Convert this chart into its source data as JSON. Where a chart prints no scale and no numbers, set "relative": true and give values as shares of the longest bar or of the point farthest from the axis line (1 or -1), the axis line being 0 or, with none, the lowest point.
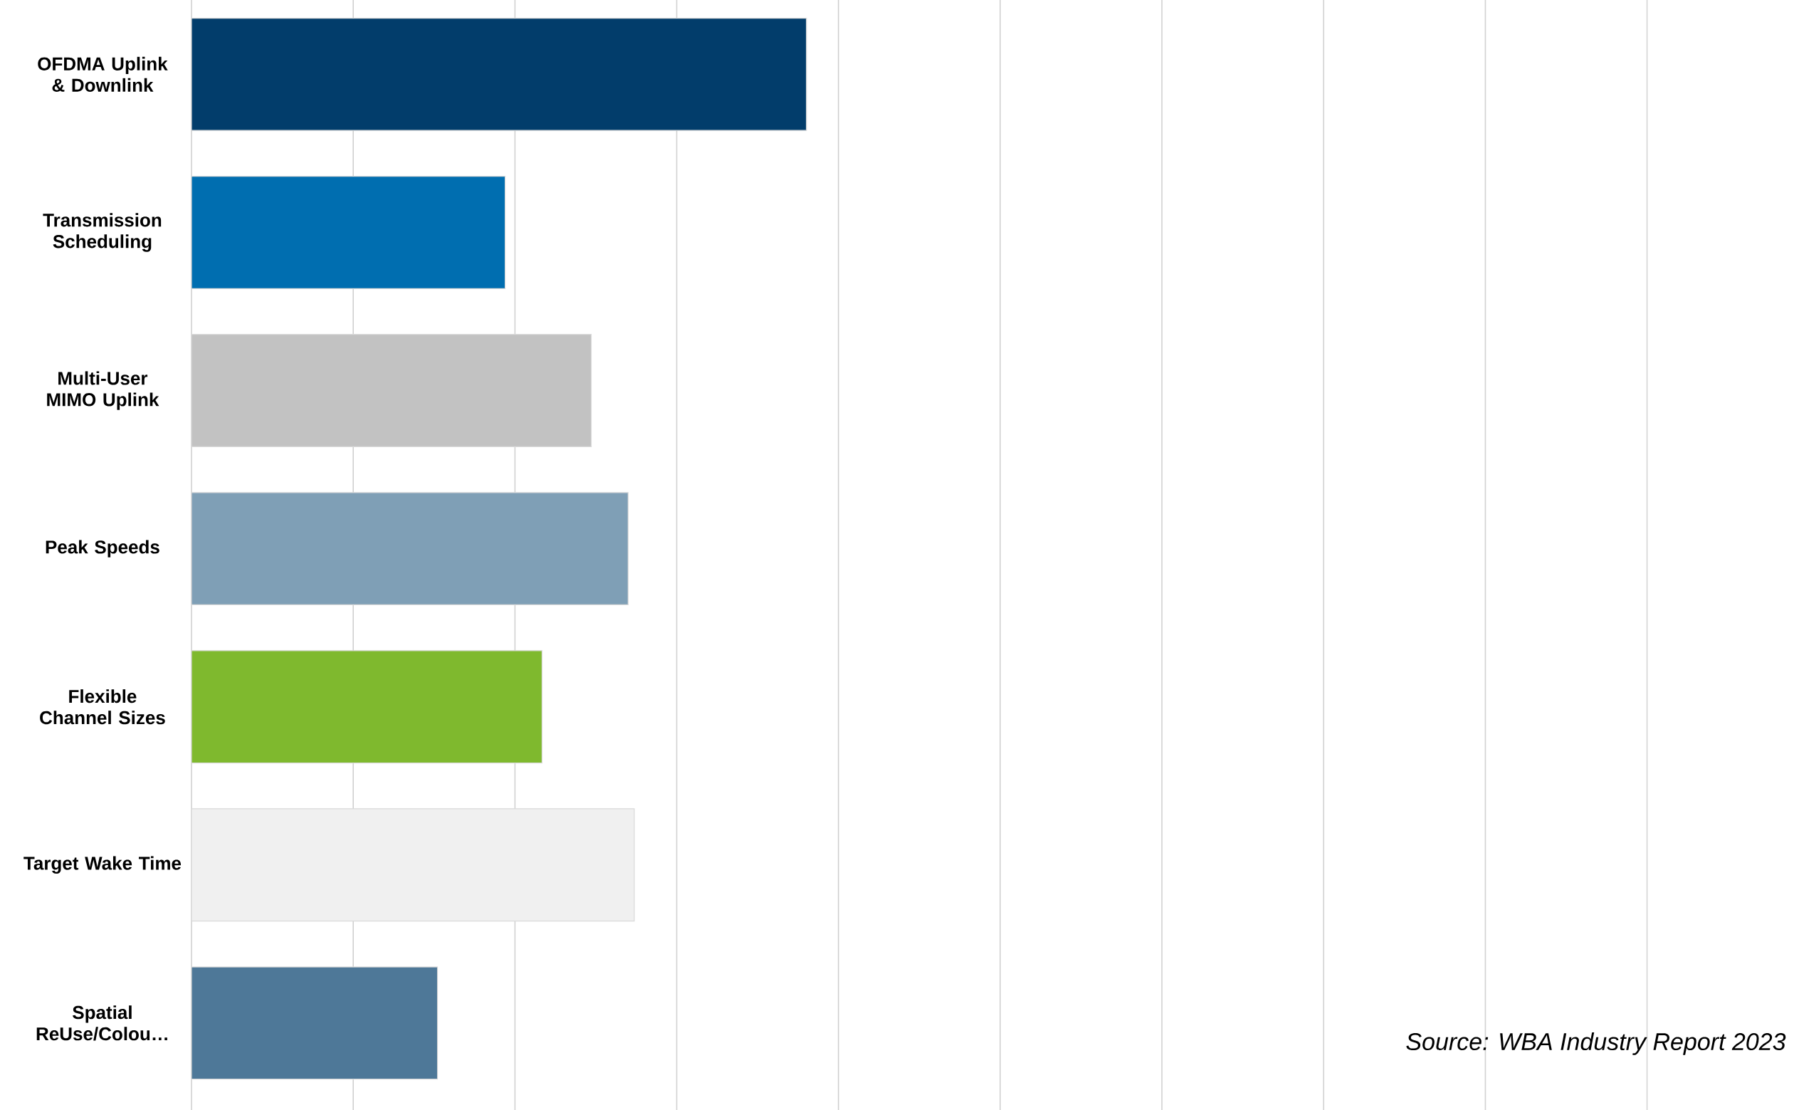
{
  "chart_data": {
    "type": "bar",
    "orientation": "horizontal",
    "relative": true,
    "grid": "x",
    "categories": [
      "OFDMA Uplink & Downlink",
      "Transmission Scheduling",
      "Multi-User MIMO Uplink",
      "Peak Speeds",
      "Flexible Channel Sizes",
      "Target Wake Time",
      "Spatial ReUse/Colou…"
    ],
    "values": [
      1,
      0.51,
      0.65,
      0.71,
      0.57,
      0.72,
      0.4
    ],
    "colors": [
      "#023d6b",
      "#006eb0",
      "#c2c2c2",
      "#7f9fb6",
      "#7fb92e",
      "#f0f0f0",
      "#4e7898"
    ],
    "annotations": [
      "Source: WBA Industry Report 2023"
    ]
  }
}
